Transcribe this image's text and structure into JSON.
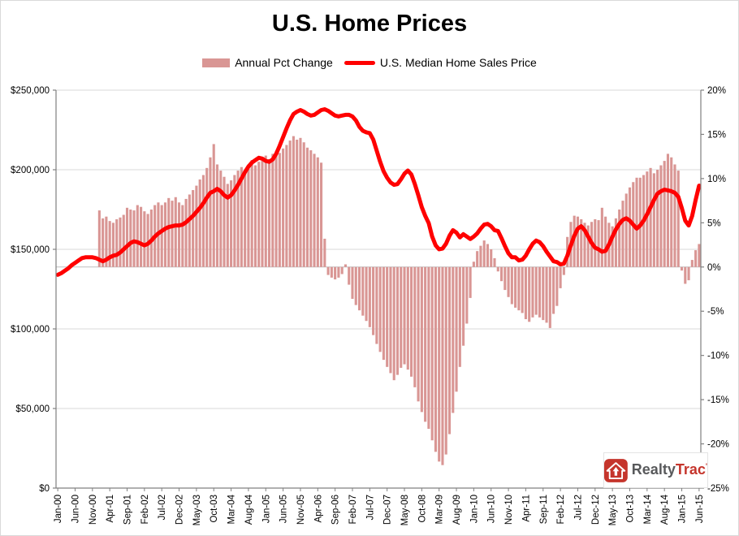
{
  "chart_data": {
    "type": "combo",
    "title": "U.S. Home Prices",
    "frequency": "monthly",
    "start_month": "Jan-00",
    "end_month": "Jun-15",
    "n_points": 186,
    "grid": true,
    "legend": {
      "position": "top",
      "entries": [
        "Annual Pct Change",
        "U.S. Median Home Sales Price"
      ]
    },
    "axes": {
      "left": {
        "min": 0,
        "max": 250000,
        "step": 50000,
        "tick_labels": [
          "$0",
          "$50,000",
          "$100,000",
          "$150,000",
          "$200,000",
          "$250,000"
        ]
      },
      "right": {
        "min": -25,
        "max": 20,
        "step": 5,
        "tick_labels": [
          "-25%",
          "-20%",
          "-15%",
          "-10%",
          "-5%",
          "0%",
          "5%",
          "10%",
          "15%",
          "20%"
        ]
      },
      "x": {
        "tick_every_n_months": 5,
        "tick_labels": [
          "Jan-00",
          "Jun-00",
          "Nov-00",
          "Apr-01",
          "Sep-01",
          "Feb-02",
          "Jul-02",
          "Dec-02",
          "May-03",
          "Oct-03",
          "Mar-04",
          "Aug-04",
          "Jan-05",
          "Jun-05",
          "Nov-05",
          "Apr-06",
          "Sep-06",
          "Feb-07",
          "Jul-07",
          "Dec-07",
          "May-08",
          "Oct-08",
          "Mar-09",
          "Aug-09",
          "Jan-10",
          "Jun-10",
          "Nov-10",
          "Apr-11",
          "Sep-11",
          "Feb-12",
          "Jul-12",
          "Dec-12",
          "May-13",
          "Oct-13",
          "Mar-14",
          "Aug-14",
          "Jan-15",
          "Jun-15"
        ]
      }
    },
    "series": [
      {
        "name": "Annual Pct Change",
        "type": "bar",
        "axis": "right",
        "unit": "%",
        "color": "#D99694",
        "values": [
          null,
          null,
          null,
          null,
          null,
          null,
          null,
          null,
          null,
          null,
          null,
          null,
          6.4,
          5.5,
          5.7,
          5.2,
          5.0,
          5.4,
          5.6,
          5.9,
          6.7,
          6.5,
          6.4,
          7.0,
          6.8,
          6.3,
          6.0,
          6.5,
          7.0,
          7.3,
          7.0,
          7.3,
          7.8,
          7.5,
          7.9,
          7.3,
          7.0,
          7.7,
          8.2,
          8.7,
          9.2,
          9.9,
          10.4,
          11.2,
          12.4,
          13.9,
          11.6,
          10.9,
          10.2,
          9.4,
          9.8,
          10.4,
          10.9,
          11.3,
          11.0,
          11.6,
          12.1,
          11.5,
          11.9,
          12.3,
          12.6,
          12.2,
          12.8,
          13.1,
          12.9,
          13.4,
          13.8,
          14.3,
          14.8,
          14.4,
          14.6,
          14.1,
          13.5,
          13.2,
          12.8,
          12.4,
          11.8,
          3.2,
          -0.9,
          -1.2,
          -1.4,
          -1.2,
          -0.8,
          0.3,
          -2.0,
          -3.6,
          -4.3,
          -4.9,
          -5.5,
          -6.1,
          -6.8,
          -7.7,
          -8.7,
          -9.6,
          -10.5,
          -11.3,
          -12.0,
          -12.8,
          -12.2,
          -11.4,
          -11.0,
          -11.6,
          -12.4,
          -13.6,
          -15.2,
          -16.4,
          -17.5,
          -18.3,
          -19.6,
          -20.9,
          -22.0,
          -22.4,
          -21.2,
          -18.9,
          -16.5,
          -14.1,
          -11.3,
          -8.9,
          -6.4,
          -3.5,
          0.6,
          1.8,
          2.4,
          3.0,
          2.6,
          2.0,
          1.0,
          -0.5,
          -1.6,
          -2.6,
          -3.4,
          -4.2,
          -4.6,
          -4.9,
          -5.2,
          -5.9,
          -6.2,
          -5.7,
          -5.4,
          -5.7,
          -6.0,
          -6.3,
          -6.9,
          -5.3,
          -4.4,
          -2.4,
          -0.9,
          3.4,
          5.1,
          5.8,
          5.7,
          5.4,
          5.0,
          4.7,
          5.1,
          5.4,
          5.3,
          6.7,
          5.7,
          5.0,
          4.6,
          5.5,
          6.5,
          7.5,
          8.3,
          9.0,
          9.6,
          10.1,
          10.1,
          10.4,
          10.8,
          11.2,
          10.6,
          11.0,
          11.5,
          12.0,
          12.8,
          12.4,
          11.6,
          10.9,
          -0.4,
          -1.9,
          -1.5,
          0.8,
          1.9,
          2.6
        ]
      },
      {
        "name": "U.S. Median Home Sales Price",
        "type": "line",
        "axis": "left",
        "unit": "USD",
        "color": "#FF0000",
        "values": [
          134000,
          135000,
          136500,
          138000,
          140000,
          141500,
          143000,
          144500,
          145000,
          145000,
          145000,
          144500,
          143500,
          142500,
          143500,
          145000,
          146000,
          146500,
          148000,
          150000,
          152000,
          154000,
          155000,
          154500,
          153500,
          152500,
          153500,
          155500,
          158000,
          160000,
          161500,
          163000,
          164000,
          164500,
          165000,
          165000,
          165500,
          167000,
          169000,
          171000,
          173500,
          176000,
          179000,
          182500,
          185500,
          186500,
          188000,
          186500,
          184000,
          182500,
          184000,
          187000,
          190500,
          194500,
          198500,
          202000,
          204500,
          206000,
          207500,
          207000,
          205500,
          205000,
          206500,
          210000,
          215000,
          220500,
          226000,
          231000,
          235000,
          236500,
          237500,
          236500,
          235000,
          234000,
          234500,
          236000,
          237500,
          238000,
          237000,
          235500,
          234000,
          233500,
          234000,
          234500,
          234500,
          233500,
          231000,
          227000,
          224500,
          223500,
          223000,
          219000,
          212000,
          205000,
          199000,
          195000,
          192000,
          190500,
          191000,
          194000,
          197500,
          199500,
          197000,
          191000,
          184000,
          176500,
          171000,
          166500,
          158000,
          152500,
          150000,
          150500,
          153500,
          158500,
          162000,
          160500,
          157500,
          159500,
          158000,
          156500,
          158000,
          160000,
          163000,
          165500,
          166000,
          164500,
          162000,
          161500,
          157000,
          152000,
          147500,
          145000,
          145000,
          143000,
          143500,
          146000,
          150000,
          153500,
          155500,
          154500,
          152000,
          148500,
          145500,
          142500,
          142000,
          140500,
          141000,
          146000,
          152500,
          158500,
          163000,
          164500,
          162000,
          158000,
          154000,
          151000,
          150000,
          148500,
          149000,
          153000,
          158000,
          162500,
          166000,
          168500,
          169500,
          168000,
          165500,
          163000,
          165000,
          168000,
          172000,
          176500,
          181000,
          185000,
          186500,
          187500,
          187000,
          186500,
          185500,
          183000,
          176000,
          168000,
          165000,
          171000,
          181000,
          190000
        ]
      }
    ]
  },
  "logo": {
    "realty": "Realty",
    "trac": "Trac",
    "mark": "'"
  },
  "colors": {
    "bar_fill": "#D99694",
    "line": "#FF0000",
    "gridline": "#D9D9D9",
    "zero_line": "#BFBFBF",
    "axis_line": "#808080",
    "tick_text": "#000000",
    "logo_red": "#C5352C",
    "logo_gray": "#58595B"
  }
}
